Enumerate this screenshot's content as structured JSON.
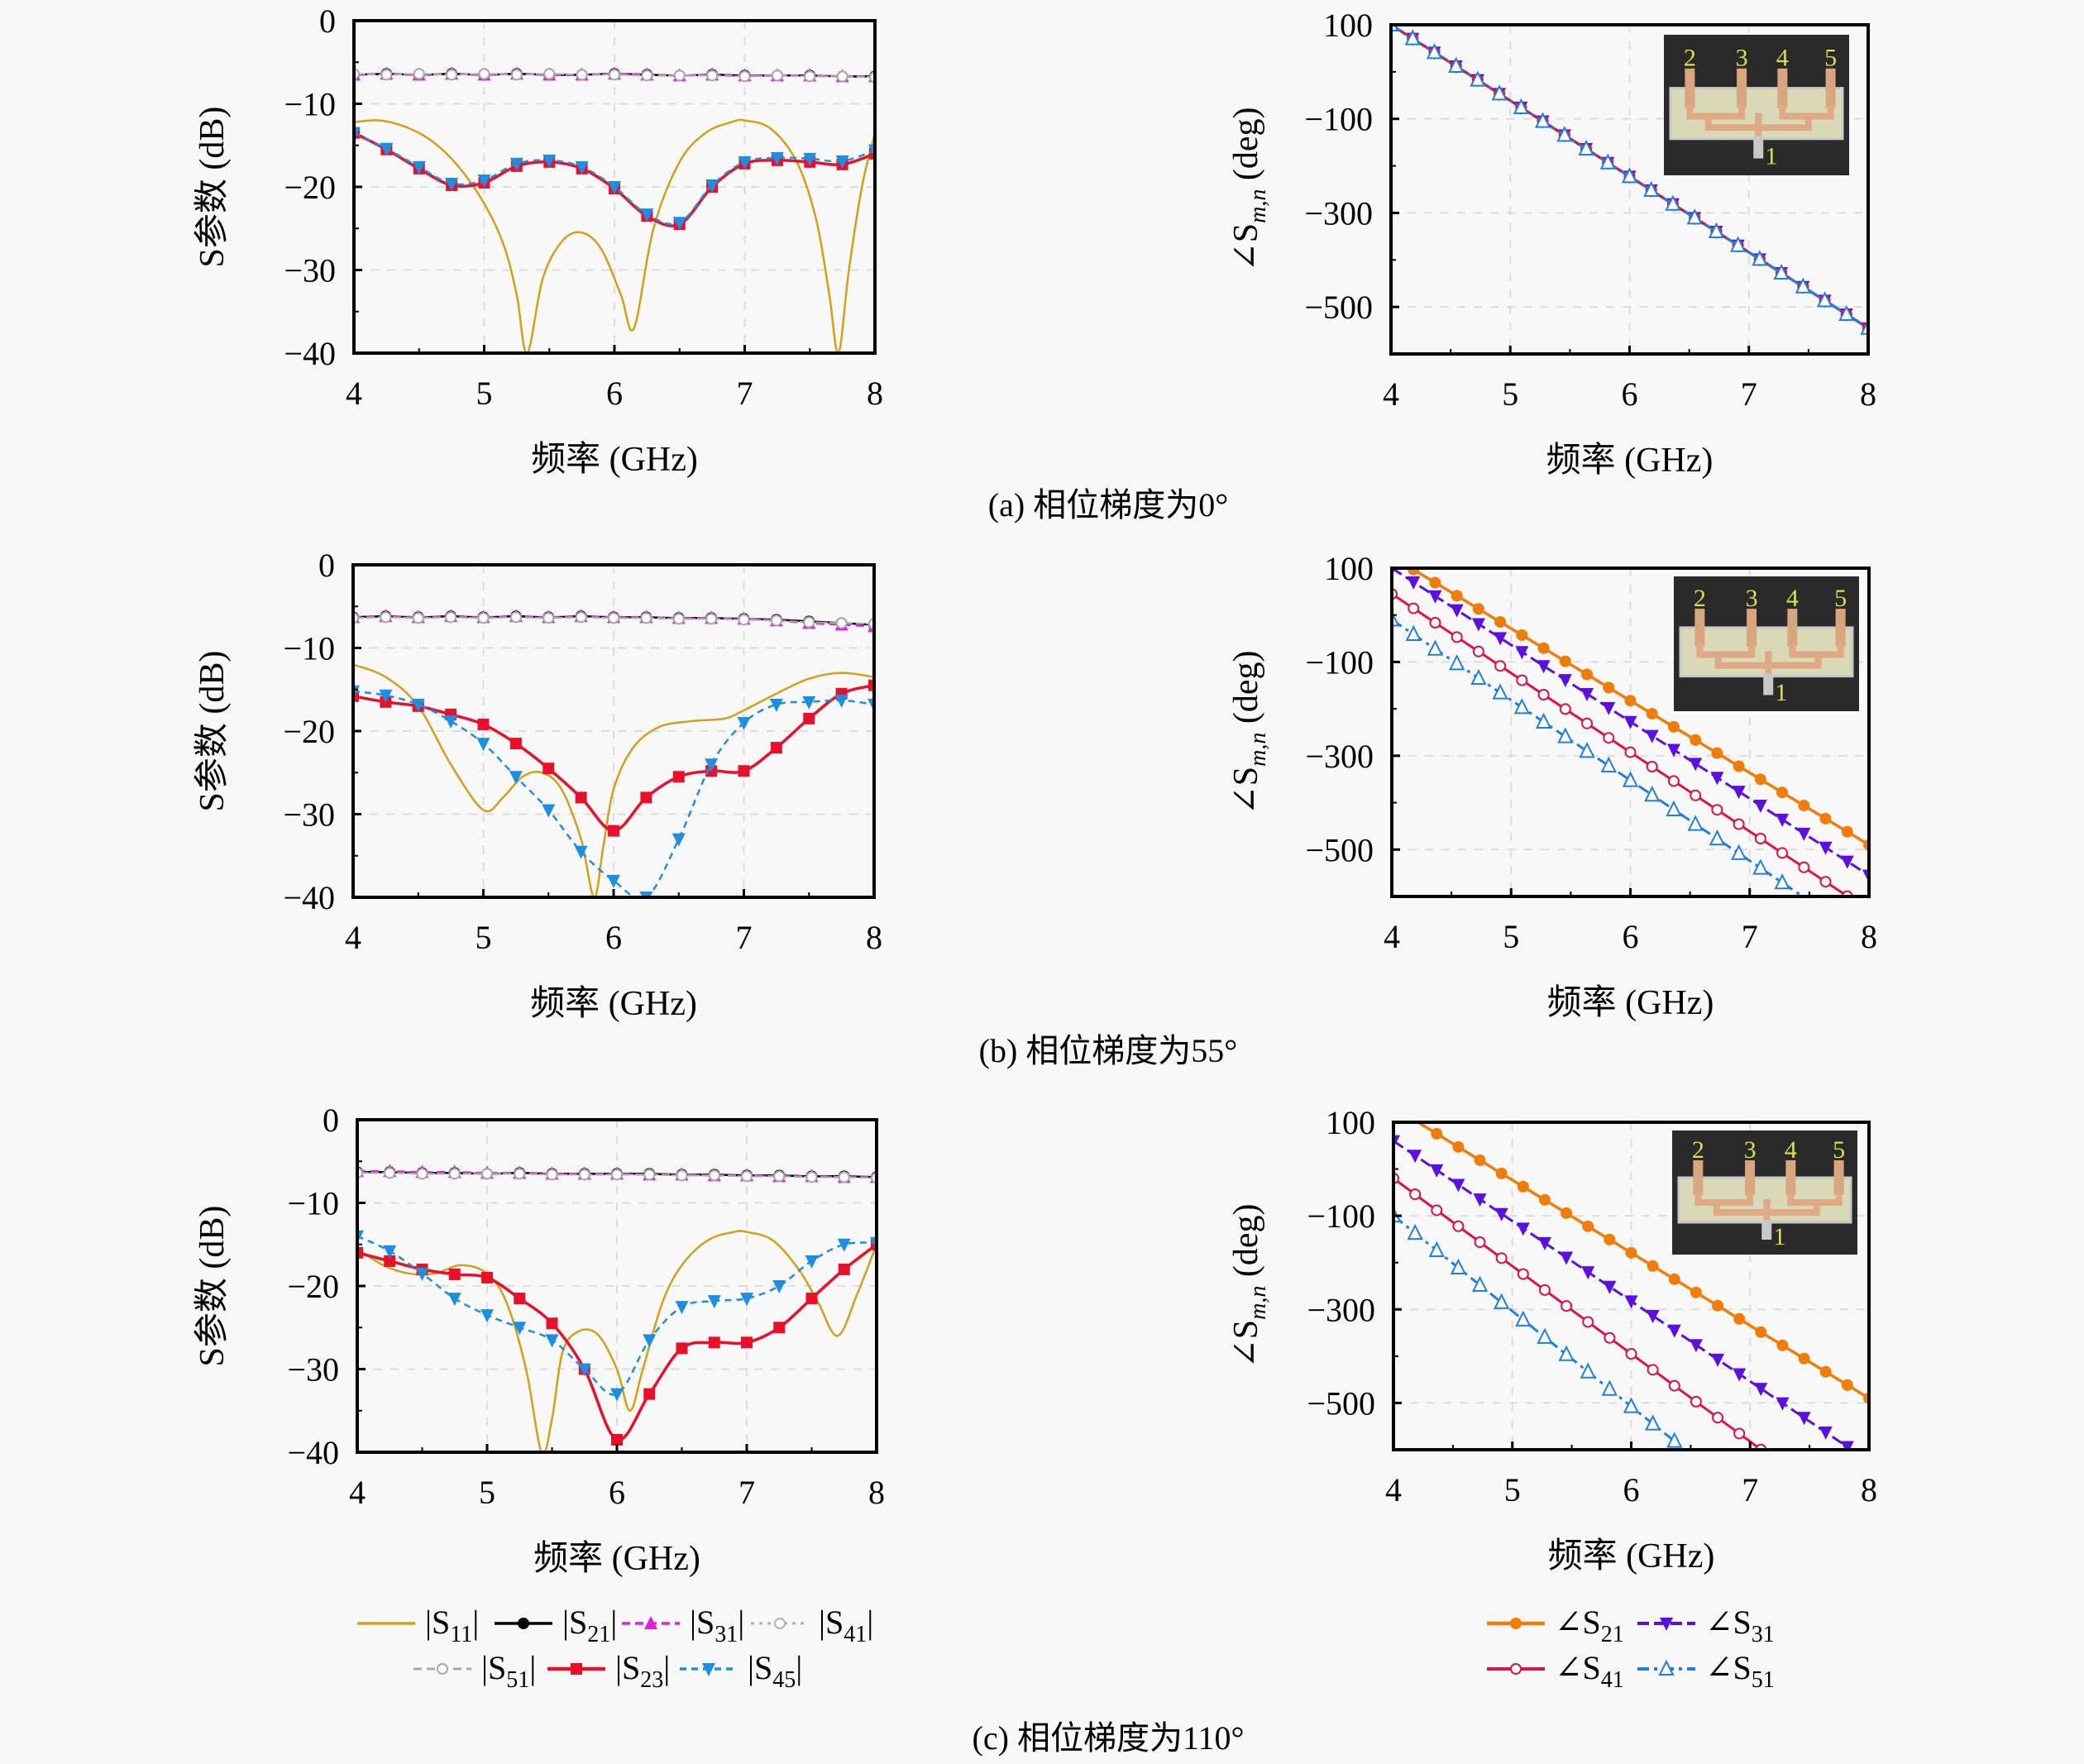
{
  "figure": {
    "captions": [
      "(a) 相位梯度为0°",
      "(b) 相位梯度为55°",
      "(c) 相位梯度为110°"
    ],
    "xlabel": "频率 (GHz)",
    "mag_ylabel": "S参数 (dB)",
    "phase_ylabel": "∠S",
    "phase_ylabel_sub": "m,n",
    "phase_ylabel_unit": " (deg)",
    "inset_port_labels": [
      "2",
      "3",
      "4",
      "5",
      "1"
    ],
    "colors": {
      "S11": "#d4a017",
      "S21": "#000000",
      "S31": "#e020e0",
      "S41": "#b0b0b0",
      "S51": "#a8a8a8",
      "S23": "#e8102a",
      "S45": "#1e8fe0",
      "P21": "#f07d0a",
      "P31": "#5a10e0",
      "P41": "#e0104a",
      "P51": "#1e7fe0"
    },
    "mag_legend": [
      {
        "key": "S11",
        "label": "|S",
        "sub": "11",
        "end": "|"
      },
      {
        "key": "S21",
        "label": "|S",
        "sub": "21",
        "end": "|"
      },
      {
        "key": "S31",
        "label": "|S",
        "sub": "31",
        "end": "|"
      },
      {
        "key": "S41",
        "label": "|S",
        "sub": "41",
        "end": "|"
      },
      {
        "key": "S51",
        "label": "|S",
        "sub": "51",
        "end": "|"
      },
      {
        "key": "S23",
        "label": "|S",
        "sub": "23",
        "end": "|"
      },
      {
        "key": "S45",
        "label": "|S",
        "sub": "45",
        "end": "|"
      }
    ],
    "phase_legend": [
      {
        "key": "P21",
        "label": "∠S",
        "sub": "21"
      },
      {
        "key": "P31",
        "label": "∠S",
        "sub": "31"
      },
      {
        "key": "P41",
        "label": "∠S",
        "sub": "41"
      },
      {
        "key": "P51",
        "label": "∠S",
        "sub": "51"
      }
    ]
  },
  "chart_data": [
    {
      "panel": "a-magnitude",
      "type": "line",
      "title": "",
      "xlabel": "频率 (GHz)",
      "ylabel": "S参数 (dB)",
      "xlim": [
        4,
        8
      ],
      "ylim": [
        -40,
        0
      ],
      "xticks": [
        4,
        5,
        6,
        7,
        8
      ],
      "yticks": [
        0,
        -10,
        -20,
        -30,
        -40
      ],
      "grid": true,
      "x": [
        4.0,
        4.25,
        4.5,
        4.75,
        5.0,
        5.25,
        5.5,
        5.75,
        6.0,
        6.25,
        6.5,
        6.75,
        7.0,
        7.25,
        7.5,
        7.75,
        8.0
      ],
      "series": [
        {
          "name": "|S11|",
          "key": "S11",
          "x": [
            4.0,
            4.2,
            4.4,
            4.6,
            4.8,
            5.0,
            5.15,
            5.25,
            5.33,
            5.45,
            5.6,
            5.75,
            5.9,
            6.05,
            6.15,
            6.3,
            6.5,
            6.7,
            6.9,
            7.0,
            7.2,
            7.4,
            7.55,
            7.65,
            7.72,
            7.8,
            7.9,
            8.0
          ],
          "values": [
            -12.2,
            -12.0,
            -12.8,
            -14.5,
            -17.5,
            -22,
            -27,
            -33,
            -40,
            -31,
            -26.5,
            -25.5,
            -27.5,
            -33,
            -37,
            -25,
            -17,
            -13.5,
            -12.2,
            -12.0,
            -13,
            -17,
            -24,
            -33,
            -40,
            -30,
            -20,
            -13.5
          ]
        },
        {
          "name": "|S21|",
          "key": "S21",
          "values": [
            -6.5,
            -6.4,
            -6.5,
            -6.4,
            -6.5,
            -6.4,
            -6.5,
            -6.5,
            -6.4,
            -6.5,
            -6.6,
            -6.5,
            -6.6,
            -6.6,
            -6.6,
            -6.7,
            -6.7
          ]
        },
        {
          "name": "|S31|",
          "key": "S31",
          "values": [
            -6.5,
            -6.4,
            -6.5,
            -6.4,
            -6.5,
            -6.4,
            -6.5,
            -6.5,
            -6.4,
            -6.5,
            -6.6,
            -6.5,
            -6.6,
            -6.6,
            -6.6,
            -6.7,
            -6.7
          ]
        },
        {
          "name": "|S41|",
          "key": "S41",
          "values": [
            -6.4,
            -6.5,
            -6.4,
            -6.5,
            -6.4,
            -6.5,
            -6.4,
            -6.5,
            -6.5,
            -6.6,
            -6.6,
            -6.6,
            -6.7,
            -6.6,
            -6.7,
            -6.7,
            -6.8
          ]
        },
        {
          "name": "|S51|",
          "key": "S51",
          "values": [
            -6.4,
            -6.5,
            -6.4,
            -6.5,
            -6.4,
            -6.5,
            -6.4,
            -6.5,
            -6.5,
            -6.6,
            -6.6,
            -6.6,
            -6.7,
            -6.6,
            -6.7,
            -6.7,
            -6.8
          ]
        },
        {
          "name": "|S23|",
          "key": "S23",
          "values": [
            -13.5,
            -15.5,
            -17.8,
            -19.8,
            -19.5,
            -17.5,
            -17.0,
            -17.8,
            -20.2,
            -23.5,
            -24.5,
            -20.0,
            -17.2,
            -16.8,
            -17.0,
            -17.3,
            -16.0
          ]
        },
        {
          "name": "|S45|",
          "key": "S45",
          "values": [
            -13.5,
            -15.4,
            -17.6,
            -19.6,
            -19.2,
            -17.2,
            -16.8,
            -17.6,
            -20.0,
            -23.3,
            -24.3,
            -19.8,
            -17.0,
            -16.5,
            -16.6,
            -16.9,
            -15.6
          ]
        }
      ]
    },
    {
      "panel": "a-phase",
      "type": "line",
      "xlabel": "频率 (GHz)",
      "ylabel": "∠Sm,n (deg)",
      "xlim": [
        4,
        8
      ],
      "ylim": [
        -600,
        100
      ],
      "xticks": [
        4,
        5,
        6,
        7,
        8
      ],
      "yticks": [
        100,
        -100,
        -300,
        -500
      ],
      "grid": true,
      "series": [
        {
          "name": "∠S21",
          "key": "P21",
          "x": [
            4,
            8
          ],
          "values": [
            100,
            -545
          ]
        },
        {
          "name": "∠S31",
          "key": "P31",
          "x": [
            4,
            8
          ],
          "values": [
            100,
            -545
          ]
        },
        {
          "name": "∠S41",
          "key": "P41",
          "x": [
            4,
            8
          ],
          "values": [
            100,
            -545
          ]
        },
        {
          "name": "∠S51",
          "key": "P51",
          "x": [
            4,
            8
          ],
          "values": [
            100,
            -545
          ]
        }
      ]
    },
    {
      "panel": "b-magnitude",
      "type": "line",
      "xlabel": "频率 (GHz)",
      "ylabel": "S参数 (dB)",
      "xlim": [
        4,
        8
      ],
      "ylim": [
        -40,
        0
      ],
      "xticks": [
        4,
        5,
        6,
        7,
        8
      ],
      "yticks": [
        0,
        -10,
        -20,
        -30,
        -40
      ],
      "grid": true,
      "x": [
        4.0,
        4.25,
        4.5,
        4.75,
        5.0,
        5.25,
        5.5,
        5.75,
        6.0,
        6.25,
        6.5,
        6.75,
        7.0,
        7.25,
        7.5,
        7.75,
        8.0
      ],
      "series": [
        {
          "name": "|S11|",
          "key": "S11",
          "x": [
            4.0,
            4.25,
            4.5,
            4.75,
            5.0,
            5.15,
            5.3,
            5.45,
            5.6,
            5.75,
            5.85,
            5.92,
            6.0,
            6.15,
            6.35,
            6.6,
            6.85,
            7.0,
            7.25,
            7.5,
            7.75,
            8.0
          ],
          "values": [
            -12,
            -13.5,
            -17,
            -24,
            -29.5,
            -28,
            -25.5,
            -25,
            -27,
            -33,
            -40,
            -34,
            -27,
            -22,
            -19.5,
            -18.8,
            -18.5,
            -17.5,
            -15.5,
            -13.7,
            -13.0,
            -13.5
          ]
        },
        {
          "name": "|S21|",
          "key": "S21",
          "values": [
            -6.3,
            -6.2,
            -6.3,
            -6.2,
            -6.3,
            -6.2,
            -6.3,
            -6.2,
            -6.3,
            -6.3,
            -6.4,
            -6.4,
            -6.5,
            -6.6,
            -6.8,
            -7.0,
            -7.2
          ]
        },
        {
          "name": "|S31|",
          "key": "S31",
          "values": [
            -6.3,
            -6.2,
            -6.3,
            -6.2,
            -6.3,
            -6.2,
            -6.3,
            -6.2,
            -6.3,
            -6.3,
            -6.4,
            -6.4,
            -6.5,
            -6.7,
            -7.0,
            -7.2,
            -7.4
          ]
        },
        {
          "name": "|S41|",
          "key": "S41",
          "values": [
            -6.4,
            -6.3,
            -6.4,
            -6.3,
            -6.4,
            -6.3,
            -6.4,
            -6.3,
            -6.4,
            -6.4,
            -6.5,
            -6.5,
            -6.6,
            -6.7,
            -6.9,
            -7.0,
            -7.1
          ]
        },
        {
          "name": "|S51|",
          "key": "S51",
          "values": [
            -6.4,
            -6.3,
            -6.4,
            -6.3,
            -6.4,
            -6.3,
            -6.4,
            -6.3,
            -6.4,
            -6.4,
            -6.5,
            -6.5,
            -6.6,
            -6.7,
            -6.9,
            -7.0,
            -7.1
          ]
        },
        {
          "name": "|S23|",
          "key": "S23",
          "values": [
            -15.8,
            -16.5,
            -17.0,
            -18.0,
            -19.2,
            -21.5,
            -24.5,
            -28.0,
            -32.0,
            -28.0,
            -25.5,
            -24.8,
            -24.8,
            -22.0,
            -18.5,
            -15.5,
            -14.5
          ]
        },
        {
          "name": "|S45|",
          "key": "S45",
          "values": [
            -15.2,
            -15.7,
            -16.8,
            -18.8,
            -21.5,
            -25.5,
            -29.5,
            -34.5,
            -38.0,
            -40.0,
            -33.0,
            -24.0,
            -19.0,
            -16.8,
            -16.5,
            -16.3,
            -16.8
          ]
        }
      ]
    },
    {
      "panel": "b-phase",
      "type": "line",
      "xlabel": "频率 (GHz)",
      "ylabel": "∠Sm,n (deg)",
      "xlim": [
        4,
        8
      ],
      "ylim": [
        -600,
        100
      ],
      "xticks": [
        4,
        5,
        6,
        7,
        8
      ],
      "yticks": [
        100,
        -100,
        -300,
        -500
      ],
      "grid": true,
      "series": [
        {
          "name": "∠S21",
          "key": "P21",
          "x": [
            4,
            8
          ],
          "values": [
            125,
            -490
          ]
        },
        {
          "name": "∠S31",
          "key": "P31",
          "x": [
            4,
            8
          ],
          "values": [
            100,
            -555
          ]
        },
        {
          "name": "∠S41",
          "key": "P41",
          "x": [
            4,
            8
          ],
          "values": [
            45,
            -630
          ]
        },
        {
          "name": "∠S51",
          "key": "P51",
          "x": [
            4,
            8
          ],
          "values": [
            -10,
            -695
          ]
        }
      ]
    },
    {
      "panel": "c-magnitude",
      "type": "line",
      "xlabel": "频率 (GHz)",
      "ylabel": "S参数 (dB)",
      "xlim": [
        4,
        8
      ],
      "ylim": [
        -40,
        0
      ],
      "xticks": [
        4,
        5,
        6,
        7,
        8
      ],
      "yticks": [
        0,
        -10,
        -20,
        -30,
        -40
      ],
      "grid": true,
      "x": [
        4.0,
        4.25,
        4.5,
        4.75,
        5.0,
        5.25,
        5.5,
        5.75,
        6.0,
        6.25,
        6.5,
        6.75,
        7.0,
        7.25,
        7.5,
        7.75,
        8.0
      ],
      "series": [
        {
          "name": "|S11|",
          "key": "S11",
          "x": [
            4.0,
            4.2,
            4.4,
            4.6,
            4.8,
            5.0,
            5.15,
            5.3,
            5.42,
            5.5,
            5.58,
            5.7,
            5.85,
            6.0,
            6.1,
            6.2,
            6.35,
            6.5,
            6.7,
            6.9,
            7.0,
            7.2,
            7.4,
            7.55,
            7.7,
            7.85,
            8.0
          ],
          "values": [
            -15.5,
            -17.5,
            -18.5,
            -18.5,
            -17.5,
            -18.5,
            -22,
            -30,
            -40,
            -36,
            -28,
            -25.5,
            -25.8,
            -30,
            -35,
            -30,
            -22,
            -17.5,
            -14.5,
            -13.5,
            -13.5,
            -14.5,
            -18,
            -22,
            -26,
            -21,
            -15
          ]
        },
        {
          "name": "|S21|",
          "key": "S21",
          "values": [
            -6.3,
            -6.3,
            -6.4,
            -6.4,
            -6.5,
            -6.4,
            -6.5,
            -6.5,
            -6.5,
            -6.5,
            -6.6,
            -6.6,
            -6.7,
            -6.7,
            -6.8,
            -6.8,
            -6.9
          ]
        },
        {
          "name": "|S31|",
          "key": "S31",
          "values": [
            -6.2,
            -6.2,
            -6.3,
            -6.3,
            -6.4,
            -6.4,
            -6.5,
            -6.5,
            -6.5,
            -6.6,
            -6.6,
            -6.7,
            -6.7,
            -6.8,
            -6.8,
            -6.9,
            -6.9
          ]
        },
        {
          "name": "|S41|",
          "key": "S41",
          "values": [
            -6.4,
            -6.4,
            -6.5,
            -6.5,
            -6.5,
            -6.5,
            -6.6,
            -6.6,
            -6.6,
            -6.6,
            -6.7,
            -6.7,
            -6.8,
            -6.8,
            -6.9,
            -6.9,
            -7.0
          ]
        },
        {
          "name": "|S51|",
          "key": "S51",
          "values": [
            -6.4,
            -6.4,
            -6.5,
            -6.5,
            -6.5,
            -6.5,
            -6.6,
            -6.6,
            -6.6,
            -6.6,
            -6.7,
            -6.7,
            -6.8,
            -6.8,
            -6.9,
            -6.9,
            -7.0
          ]
        },
        {
          "name": "|S23|",
          "key": "S23",
          "values": [
            -16.0,
            -17.0,
            -18.0,
            -18.6,
            -19.0,
            -21.5,
            -24.5,
            -30.0,
            -38.5,
            -33.0,
            -27.5,
            -26.8,
            -26.8,
            -25.0,
            -21.5,
            -18.0,
            -15.0
          ]
        },
        {
          "name": "|S45|",
          "key": "S45",
          "values": [
            -14.0,
            -15.8,
            -18.5,
            -21.5,
            -23.5,
            -25.0,
            -26.5,
            -30.0,
            -33.0,
            -26.5,
            -22.5,
            -21.8,
            -21.5,
            -20.0,
            -17.0,
            -15.0,
            -14.8
          ]
        }
      ]
    },
    {
      "panel": "c-phase",
      "type": "line",
      "xlabel": "频率 (GHz)",
      "ylabel": "∠Sm,n (deg)",
      "xlim": [
        4,
        8
      ],
      "ylim": [
        -600,
        100
      ],
      "xticks": [
        4,
        5,
        6,
        7,
        8
      ],
      "yticks": [
        100,
        -100,
        -300,
        -500
      ],
      "grid": true,
      "series": [
        {
          "name": "∠S21",
          "key": "P21",
          "x": [
            4,
            8
          ],
          "values": [
            132,
            -490
          ]
        },
        {
          "name": "∠S31",
          "key": "P31",
          "x": [
            4,
            8
          ],
          "values": [
            60,
            -625
          ]
        },
        {
          "name": "∠S41",
          "key": "P41",
          "x": [
            4,
            8
          ],
          "values": [
            -20,
            -770
          ]
        },
        {
          "name": "∠S51",
          "key": "P51",
          "x": [
            4,
            8
          ],
          "values": [
            -100,
            -915
          ]
        }
      ]
    }
  ]
}
